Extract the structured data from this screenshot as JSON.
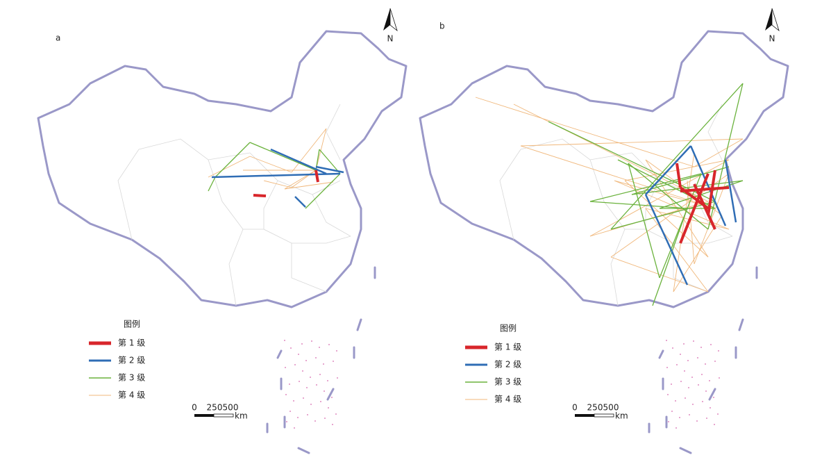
{
  "panels": [
    {
      "label": "a",
      "north": "N",
      "legend": {
        "title": "图例",
        "items": [
          {
            "name": "第 1 级",
            "color": "#d8262b"
          },
          {
            "name": "第 2 级",
            "color": "#2f6db5"
          },
          {
            "name": "第 3 级",
            "color": "#6ab23c"
          },
          {
            "name": "第 4 级",
            "color": "#f0b77a"
          }
        ]
      },
      "scale": {
        "ticks": [
          "0",
          "250",
          "500"
        ],
        "unit": "km"
      }
    },
    {
      "label": "b",
      "north": "N",
      "legend": {
        "title": "图例",
        "items": [
          {
            "name": "第 1 级",
            "color": "#d8262b"
          },
          {
            "name": "第 2 级",
            "color": "#2f6db5"
          },
          {
            "name": "第 3 级",
            "color": "#6ab23c"
          },
          {
            "name": "第 4 级",
            "color": "#f0b77a"
          }
        ]
      },
      "scale": {
        "ticks": [
          "0",
          "250",
          "500"
        ],
        "unit": "km"
      }
    }
  ]
}
